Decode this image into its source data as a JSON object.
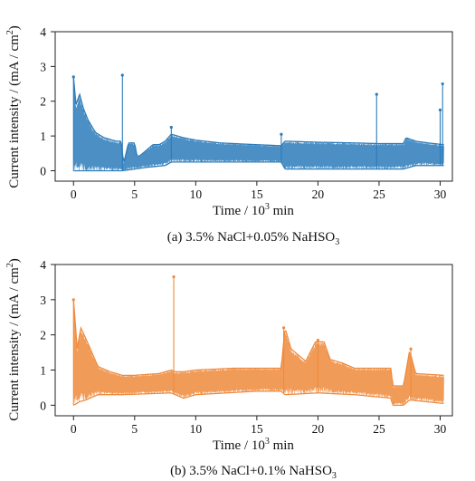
{
  "chart_data": [
    {
      "type": "line",
      "caption": "(a) 3.5% NaCl+0.05% NaHSO",
      "caption_sub": "3",
      "xlabel": "Time / 10",
      "xlabel_sup": "3",
      "xlabel_unit": " min",
      "ylabel": "Current intensity / (mA / cm",
      "ylabel_sup": "2",
      "ylabel_end": ")",
      "xlim": [
        -1.5,
        31.0
      ],
      "ylim": [
        -0.3,
        4.0
      ],
      "xticks": [
        "0",
        "5",
        "10",
        "15",
        "20",
        "25",
        "30"
      ],
      "yticks": [
        "0",
        "1",
        "2",
        "3",
        "4"
      ],
      "color": "#2b7bba",
      "series": [
        {
          "upper_envelope": [
            [
              0.0,
              2.7
            ],
            [
              0.2,
              1.9
            ],
            [
              0.5,
              2.2
            ],
            [
              0.8,
              1.8
            ],
            [
              1.2,
              1.45
            ],
            [
              1.8,
              1.1
            ],
            [
              2.5,
              0.95
            ],
            [
              3.5,
              0.85
            ],
            [
              3.9,
              0.85
            ],
            [
              4.1,
              0.2
            ],
            [
              4.5,
              0.8
            ],
            [
              5.0,
              0.8
            ],
            [
              5.2,
              0.4
            ],
            [
              5.5,
              0.45
            ],
            [
              6.0,
              0.6
            ],
            [
              6.5,
              0.75
            ],
            [
              7.0,
              0.75
            ],
            [
              7.5,
              0.85
            ],
            [
              8.0,
              1.05
            ],
            [
              9.0,
              0.95
            ],
            [
              10.0,
              0.88
            ],
            [
              12.0,
              0.8
            ],
            [
              15.0,
              0.75
            ],
            [
              17.0,
              0.72
            ],
            [
              17.3,
              0.85
            ],
            [
              20.0,
              0.82
            ],
            [
              23.0,
              0.8
            ],
            [
              25.0,
              0.78
            ],
            [
              27.0,
              0.78
            ],
            [
              27.2,
              0.95
            ],
            [
              28.0,
              0.85
            ],
            [
              29.0,
              0.8
            ],
            [
              30.3,
              0.75
            ]
          ],
          "lower_envelope": [
            [
              0.0,
              0.0
            ],
            [
              4.0,
              0.0
            ],
            [
              5.0,
              0.05
            ],
            [
              6.0,
              0.1
            ],
            [
              7.5,
              0.15
            ],
            [
              8.0,
              0.25
            ],
            [
              12.0,
              0.25
            ],
            [
              17.0,
              0.25
            ],
            [
              17.3,
              0.05
            ],
            [
              27.0,
              0.05
            ],
            [
              28.0,
              0.15
            ],
            [
              30.3,
              0.15
            ]
          ],
          "spikes": [
            [
              0.0,
              2.7
            ],
            [
              4.0,
              2.75
            ],
            [
              8.0,
              1.25
            ],
            [
              17.0,
              1.05
            ],
            [
              24.8,
              2.2
            ],
            [
              30.0,
              1.75
            ],
            [
              30.2,
              2.5
            ]
          ]
        }
      ]
    },
    {
      "type": "line",
      "caption": "(b) 3.5% NaCl+0.1% NaHSO",
      "caption_sub": "3",
      "xlabel": "Time / 10",
      "xlabel_sup": "3",
      "xlabel_unit": " min",
      "ylabel": "Current intensity / (mA / cm",
      "ylabel_sup": "2",
      "ylabel_end": ")",
      "xlim": [
        -1.5,
        31.0
      ],
      "ylim": [
        -0.3,
        4.0
      ],
      "xticks": [
        "0",
        "5",
        "10",
        "15",
        "20",
        "25",
        "30"
      ],
      "yticks": [
        "0",
        "1",
        "2",
        "3",
        "4"
      ],
      "color": "#ef8a3c",
      "series": [
        {
          "upper_envelope": [
            [
              0.0,
              3.0
            ],
            [
              0.3,
              1.6
            ],
            [
              0.6,
              2.2
            ],
            [
              1.0,
              1.9
            ],
            [
              1.5,
              1.5
            ],
            [
              2.0,
              1.1
            ],
            [
              3.0,
              0.95
            ],
            [
              4.0,
              0.85
            ],
            [
              5.0,
              0.85
            ],
            [
              7.0,
              0.9
            ],
            [
              8.0,
              1.0
            ],
            [
              8.3,
              0.95
            ],
            [
              9.0,
              0.95
            ],
            [
              10.0,
              1.0
            ],
            [
              13.0,
              1.05
            ],
            [
              15.0,
              1.05
            ],
            [
              17.0,
              1.05
            ],
            [
              17.3,
              2.2
            ],
            [
              17.8,
              1.6
            ],
            [
              19.0,
              1.25
            ],
            [
              19.8,
              1.8
            ],
            [
              20.5,
              1.8
            ],
            [
              21.0,
              1.3
            ],
            [
              22.0,
              1.2
            ],
            [
              23.0,
              1.05
            ],
            [
              26.0,
              1.05
            ],
            [
              26.1,
              0.55
            ],
            [
              27.0,
              0.55
            ],
            [
              27.5,
              1.55
            ],
            [
              28.0,
              0.9
            ],
            [
              30.3,
              0.85
            ]
          ],
          "lower_envelope": [
            [
              0.0,
              0.0
            ],
            [
              0.5,
              0.1
            ],
            [
              1.0,
              0.15
            ],
            [
              2.0,
              0.3
            ],
            [
              4.0,
              0.3
            ],
            [
              8.0,
              0.35
            ],
            [
              9.0,
              0.2
            ],
            [
              10.0,
              0.3
            ],
            [
              15.0,
              0.4
            ],
            [
              17.0,
              0.4
            ],
            [
              17.3,
              0.3
            ],
            [
              20.0,
              0.35
            ],
            [
              23.0,
              0.3
            ],
            [
              26.0,
              0.2
            ],
            [
              26.1,
              0.0
            ],
            [
              27.0,
              0.0
            ],
            [
              27.5,
              0.15
            ],
            [
              30.3,
              0.05
            ]
          ],
          "spikes": [
            [
              0.0,
              3.0
            ],
            [
              8.2,
              3.65
            ],
            [
              17.2,
              2.2
            ],
            [
              20.0,
              1.85
            ],
            [
              27.6,
              1.6
            ]
          ]
        }
      ]
    }
  ]
}
